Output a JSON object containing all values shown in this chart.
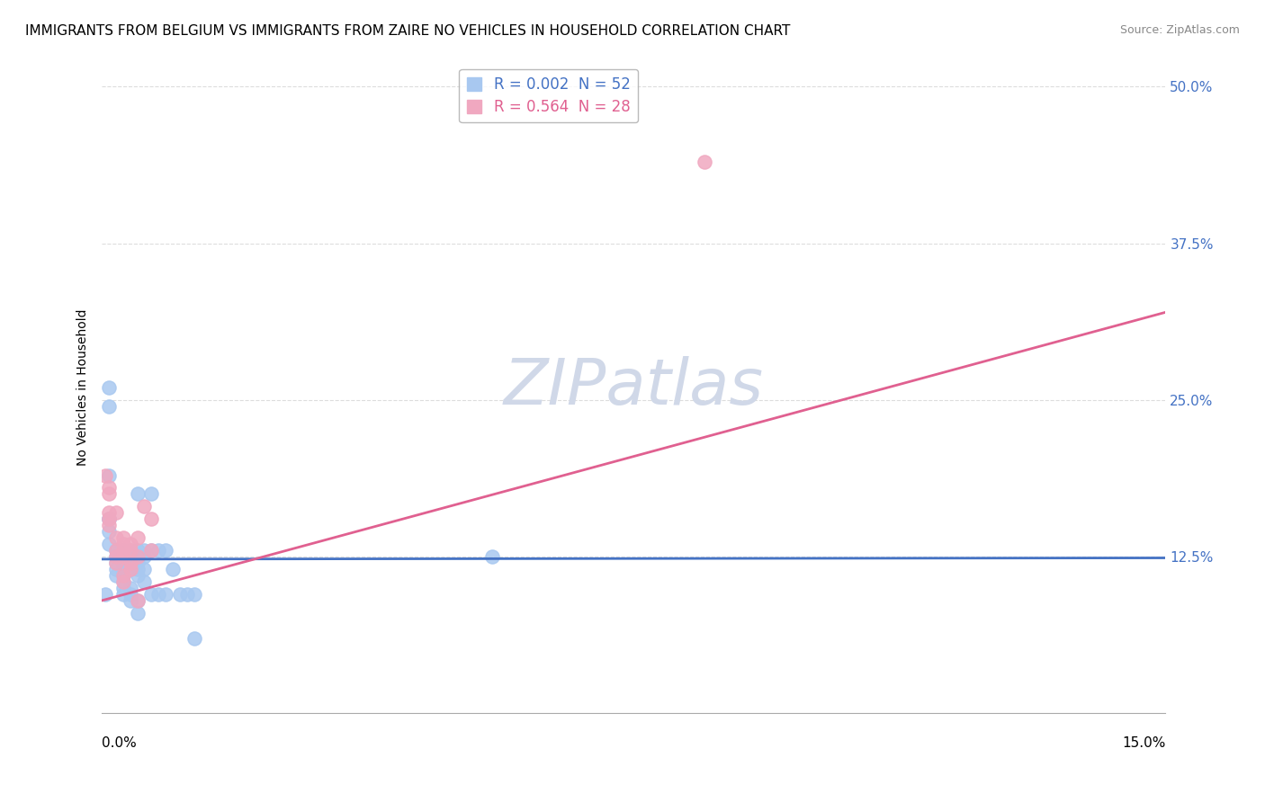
{
  "title": "IMMIGRANTS FROM BELGIUM VS IMMIGRANTS FROM ZAIRE NO VEHICLES IN HOUSEHOLD CORRELATION CHART",
  "source": "Source: ZipAtlas.com",
  "xlabel_bottom_left": "0.0%",
  "xlabel_bottom_right": "15.0%",
  "ylabel": "No Vehicles in Household",
  "watermark": "ZIPatlas",
  "legend_entries": [
    {
      "label": "R = 0.002  N = 52",
      "color": "#a8c8f0"
    },
    {
      "label": "R = 0.564  N = 28",
      "color": "#f0a8c0"
    }
  ],
  "belgium_scatter": [
    [
      0.001,
      0.245
    ],
    [
      0.001,
      0.19
    ],
    [
      0.001,
      0.155
    ],
    [
      0.001,
      0.145
    ],
    [
      0.001,
      0.135
    ],
    [
      0.002,
      0.13
    ],
    [
      0.002,
      0.125
    ],
    [
      0.002,
      0.12
    ],
    [
      0.002,
      0.115
    ],
    [
      0.002,
      0.11
    ],
    [
      0.003,
      0.13
    ],
    [
      0.003,
      0.125
    ],
    [
      0.003,
      0.12
    ],
    [
      0.003,
      0.115
    ],
    [
      0.003,
      0.11
    ],
    [
      0.003,
      0.105
    ],
    [
      0.003,
      0.1
    ],
    [
      0.003,
      0.095
    ],
    [
      0.004,
      0.13
    ],
    [
      0.004,
      0.125
    ],
    [
      0.004,
      0.12
    ],
    [
      0.004,
      0.115
    ],
    [
      0.004,
      0.1
    ],
    [
      0.004,
      0.095
    ],
    [
      0.004,
      0.09
    ],
    [
      0.005,
      0.175
    ],
    [
      0.005,
      0.13
    ],
    [
      0.005,
      0.12
    ],
    [
      0.005,
      0.115
    ],
    [
      0.005,
      0.11
    ],
    [
      0.005,
      0.09
    ],
    [
      0.005,
      0.08
    ],
    [
      0.006,
      0.13
    ],
    [
      0.006,
      0.125
    ],
    [
      0.006,
      0.115
    ],
    [
      0.006,
      0.105
    ],
    [
      0.007,
      0.175
    ],
    [
      0.007,
      0.13
    ],
    [
      0.007,
      0.095
    ],
    [
      0.008,
      0.13
    ],
    [
      0.008,
      0.095
    ],
    [
      0.009,
      0.13
    ],
    [
      0.009,
      0.095
    ],
    [
      0.01,
      0.115
    ],
    [
      0.011,
      0.095
    ],
    [
      0.012,
      0.095
    ],
    [
      0.013,
      0.095
    ],
    [
      0.013,
      0.06
    ],
    [
      0.055,
      0.125
    ],
    [
      0.001,
      0.26
    ],
    [
      0.001,
      0.155
    ],
    [
      0.0005,
      0.095
    ]
  ],
  "zaire_scatter": [
    [
      0.0005,
      0.19
    ],
    [
      0.001,
      0.18
    ],
    [
      0.001,
      0.175
    ],
    [
      0.001,
      0.16
    ],
    [
      0.001,
      0.155
    ],
    [
      0.001,
      0.15
    ],
    [
      0.002,
      0.16
    ],
    [
      0.002,
      0.14
    ],
    [
      0.002,
      0.13
    ],
    [
      0.002,
      0.125
    ],
    [
      0.002,
      0.12
    ],
    [
      0.003,
      0.14
    ],
    [
      0.003,
      0.135
    ],
    [
      0.003,
      0.13
    ],
    [
      0.003,
      0.125
    ],
    [
      0.003,
      0.11
    ],
    [
      0.003,
      0.105
    ],
    [
      0.004,
      0.135
    ],
    [
      0.004,
      0.13
    ],
    [
      0.004,
      0.12
    ],
    [
      0.004,
      0.115
    ],
    [
      0.005,
      0.14
    ],
    [
      0.005,
      0.125
    ],
    [
      0.005,
      0.09
    ],
    [
      0.006,
      0.165
    ],
    [
      0.007,
      0.155
    ],
    [
      0.007,
      0.13
    ],
    [
      0.085,
      0.44
    ]
  ],
  "belgium_line": {
    "x": [
      0.0,
      0.15
    ],
    "y": [
      0.123,
      0.124
    ]
  },
  "zaire_line": {
    "x": [
      0.0,
      0.15
    ],
    "y": [
      0.09,
      0.32
    ]
  },
  "xlim": [
    0.0,
    0.15
  ],
  "ylim": [
    0.0,
    0.52
  ],
  "yticks_right": [
    0.125,
    0.25,
    0.375,
    0.5
  ],
  "ytick_labels_right": [
    "12.5%",
    "25.0%",
    "37.5%",
    "50.0%"
  ],
  "grid_color": "#dddddd",
  "belgium_color": "#a8c8f0",
  "zaire_color": "#f0a8c0",
  "belgium_line_color": "#4472c4",
  "zaire_line_color": "#e06090",
  "bg_color": "#ffffff",
  "title_fontsize": 11,
  "source_fontsize": 9,
  "axis_label_fontsize": 10,
  "watermark_color": "#d0d8e8",
  "watermark_fontsize": 52
}
